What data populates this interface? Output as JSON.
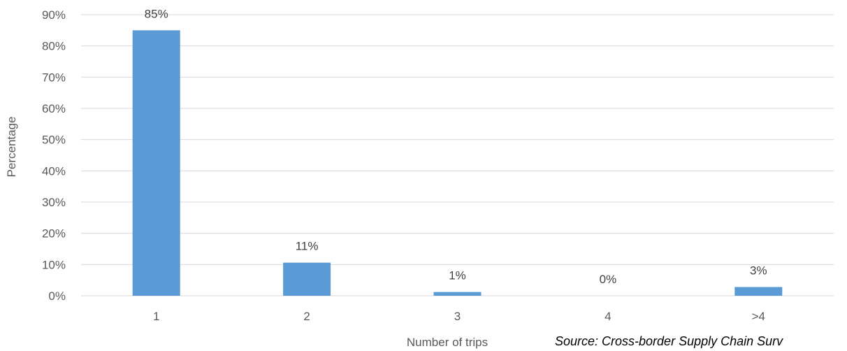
{
  "chart_data": {
    "type": "bar",
    "title": "",
    "xlabel": "Number of trips",
    "ylabel": "Percentage",
    "categories": [
      "1",
      "2",
      "3",
      "4",
      ">4"
    ],
    "values": [
      85,
      10.6,
      1.2,
      0,
      2.8
    ],
    "data_labels": [
      "85%",
      "11%",
      "1%",
      "0%",
      "3%"
    ],
    "ylim": [
      0,
      90
    ],
    "yticks": [
      0,
      10,
      20,
      30,
      40,
      50,
      60,
      70,
      80,
      90
    ],
    "ytick_labels": [
      "0%",
      "10%",
      "20%",
      "30%",
      "40%",
      "50%",
      "60%",
      "70%",
      "80%",
      "90%"
    ],
    "grid": true,
    "legend": "none",
    "bar_color": "#5B9BD5",
    "grid_color": "#D9D9D9"
  },
  "footnote": "Source: Cross-border Supply Chain Surv"
}
